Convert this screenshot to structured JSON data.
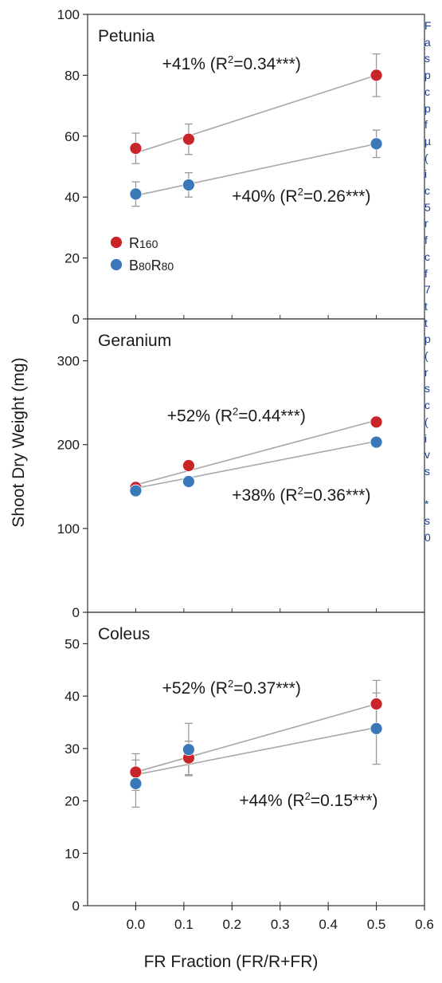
{
  "chart_data": {
    "type": "scatter",
    "ylabel": "Shoot Dry Weight (mg)",
    "xlabel": "FR Fraction (FR/R+FR)",
    "x_ticks": [
      "0.0",
      "0.1",
      "0.2",
      "0.3",
      "0.4",
      "0.5",
      "0.6"
    ],
    "xlim": [
      -0.1,
      0.6
    ],
    "legend": {
      "placement": "bottom-left of top panel",
      "entries": [
        {
          "label_main": "R",
          "label_sub": "160",
          "color": "#c8252b"
        },
        {
          "label_main": "B",
          "label_sub": "80",
          "label_main2": "R",
          "label_sub2": "80",
          "color": "#3a78b8"
        }
      ]
    },
    "panels": [
      {
        "title": "Petunia",
        "ylim": [
          0,
          100
        ],
        "y_ticks": [
          0,
          20,
          40,
          60,
          80,
          100
        ],
        "x": [
          0.0,
          0.11,
          0.5
        ],
        "series": [
          {
            "color": "#c8252b",
            "values": [
              56,
              59,
              80
            ],
            "err": [
              5,
              5,
              7
            ],
            "fit": [
              54.5,
              80
            ]
          },
          {
            "color": "#3a78b8",
            "values": [
              41,
              44,
              57.5
            ],
            "err": [
              4,
              4,
              4.5
            ],
            "fit": [
              40.5,
              57.5
            ]
          }
        ],
        "annotations": [
          {
            "text": "+41% (R²=0.34***)",
            "anchor_x": 0.055,
            "anchor_y": 82
          },
          {
            "text": "+40% (R²=0.26***)",
            "anchor_x": 0.2,
            "anchor_y": 38.5
          }
        ]
      },
      {
        "title": "Geranium",
        "ylim": [
          0,
          350
        ],
        "y_ticks": [
          0,
          100,
          200,
          300
        ],
        "x": [
          0.0,
          0.11,
          0.5
        ],
        "series": [
          {
            "color": "#c8252b",
            "values": [
              149,
              175,
              227
            ],
            "err": [
              0,
              0,
              0
            ],
            "fit": [
              152,
              229
            ]
          },
          {
            "color": "#3a78b8",
            "values": [
              145,
              156,
              203
            ],
            "err": [
              0,
              0,
              0
            ],
            "fit": [
              148,
              204
            ]
          }
        ],
        "annotations": [
          {
            "text": "+52% (R²=0.44***)",
            "anchor_x": 0.065,
            "anchor_y": 228
          },
          {
            "text": "+38% (R²=0.36***)",
            "anchor_x": 0.2,
            "anchor_y": 133
          }
        ]
      },
      {
        "title": "Coleus",
        "ylim": [
          0,
          56
        ],
        "y_ticks": [
          0,
          10,
          20,
          30,
          40,
          50
        ],
        "x": [
          0.0,
          0.11,
          0.5
        ],
        "series": [
          {
            "color": "#c8252b",
            "values": [
              25.5,
              28.2,
              38.5
            ],
            "err": [
              3.5,
              3.2,
              4.5
            ],
            "fit": [
              25.5,
              38.5
            ]
          },
          {
            "color": "#3a78b8",
            "values": [
              23.3,
              29.8,
              33.8
            ],
            "err": [
              4.5,
              5,
              6.8
            ],
            "fit": [
              25,
              34
            ]
          }
        ],
        "annotations": [
          {
            "text": "+52% (R²=0.37***)",
            "anchor_x": 0.055,
            "anchor_y": 40.5
          },
          {
            "text": "+44% (R²=0.15***)",
            "anchor_x": 0.215,
            "anchor_y": 19
          }
        ]
      }
    ]
  },
  "side_caption": {
    "lines": [
      "F",
      "a",
      "s",
      "p",
      "c",
      "p",
      "f",
      "µ",
      "(",
      "i",
      "c",
      "5",
      "r",
      "f",
      "c",
      "f",
      "7",
      "t",
      "t",
      "p",
      "(",
      "r",
      "s",
      "c",
      "(",
      "i",
      "v",
      "s",
      "",
      "*",
      "s",
      "0"
    ],
    "color": "#1f3f8f"
  }
}
